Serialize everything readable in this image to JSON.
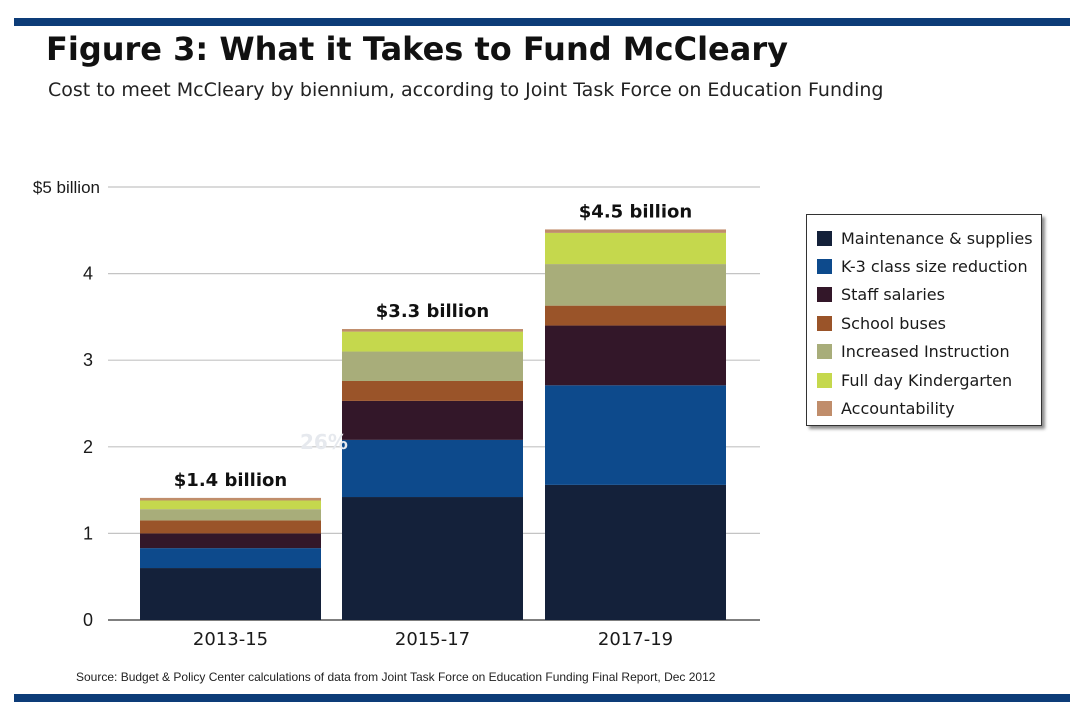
{
  "figure": {
    "title": "Figure 3: What it Takes to Fund McCleary",
    "subtitle": "Cost to meet McCleary by biennium, according to Joint Task Force on Education Funding",
    "source": "Source: Budget & Policy Center calculations of data from Joint Task Force on Education Funding Final Report, Dec 2012",
    "rule_color": "#0d3c78"
  },
  "chart_data": {
    "type": "bar",
    "stacked": true,
    "title": "Figure 3: What it Takes to Fund McCleary",
    "subtitle": "Cost to meet McCleary by biennium, according to Joint Task Force on Education Funding",
    "xlabel": "",
    "ylabel": "",
    "ylim": [
      0,
      5
    ],
    "yticks": [
      {
        "value": 0,
        "label": "0"
      },
      {
        "value": 1,
        "label": "1"
      },
      {
        "value": 2,
        "label": "2"
      },
      {
        "value": 3,
        "label": "3"
      },
      {
        "value": 4,
        "label": "4"
      },
      {
        "value": 5,
        "label": "$5 billion"
      }
    ],
    "grid": true,
    "legend_position": "right",
    "categories": [
      "2013-15",
      "2015-17",
      "2017-19"
    ],
    "totals": [
      {
        "value": 1.4,
        "label": "$1.4 billion"
      },
      {
        "value": 3.3,
        "label": "$3.3 billion"
      },
      {
        "value": 4.5,
        "label": "$4.5 billion"
      }
    ],
    "annotations": [
      {
        "text": "26%",
        "category": "2015-17",
        "y": 2.0
      }
    ],
    "series": [
      {
        "name": "Maintenance & supplies",
        "color": "#14213a",
        "values": [
          0.6,
          1.42,
          1.56
        ]
      },
      {
        "name": "K-3 class size reduction",
        "color": "#0d4a8c",
        "values": [
          0.23,
          0.66,
          1.15
        ]
      },
      {
        "name": "Staff salaries",
        "color": "#331729",
        "values": [
          0.17,
          0.45,
          0.69
        ]
      },
      {
        "name": "School buses",
        "color": "#9a5429",
        "values": [
          0.15,
          0.23,
          0.23
        ]
      },
      {
        "name": "Increased Instruction",
        "color": "#a8ad7a",
        "values": [
          0.13,
          0.34,
          0.48
        ]
      },
      {
        "name": "Full day Kindergarten",
        "color": "#c5d84d",
        "values": [
          0.1,
          0.23,
          0.36
        ]
      },
      {
        "name": "Accountability",
        "color": "#c08d6b",
        "values": [
          0.03,
          0.03,
          0.04
        ]
      }
    ]
  }
}
